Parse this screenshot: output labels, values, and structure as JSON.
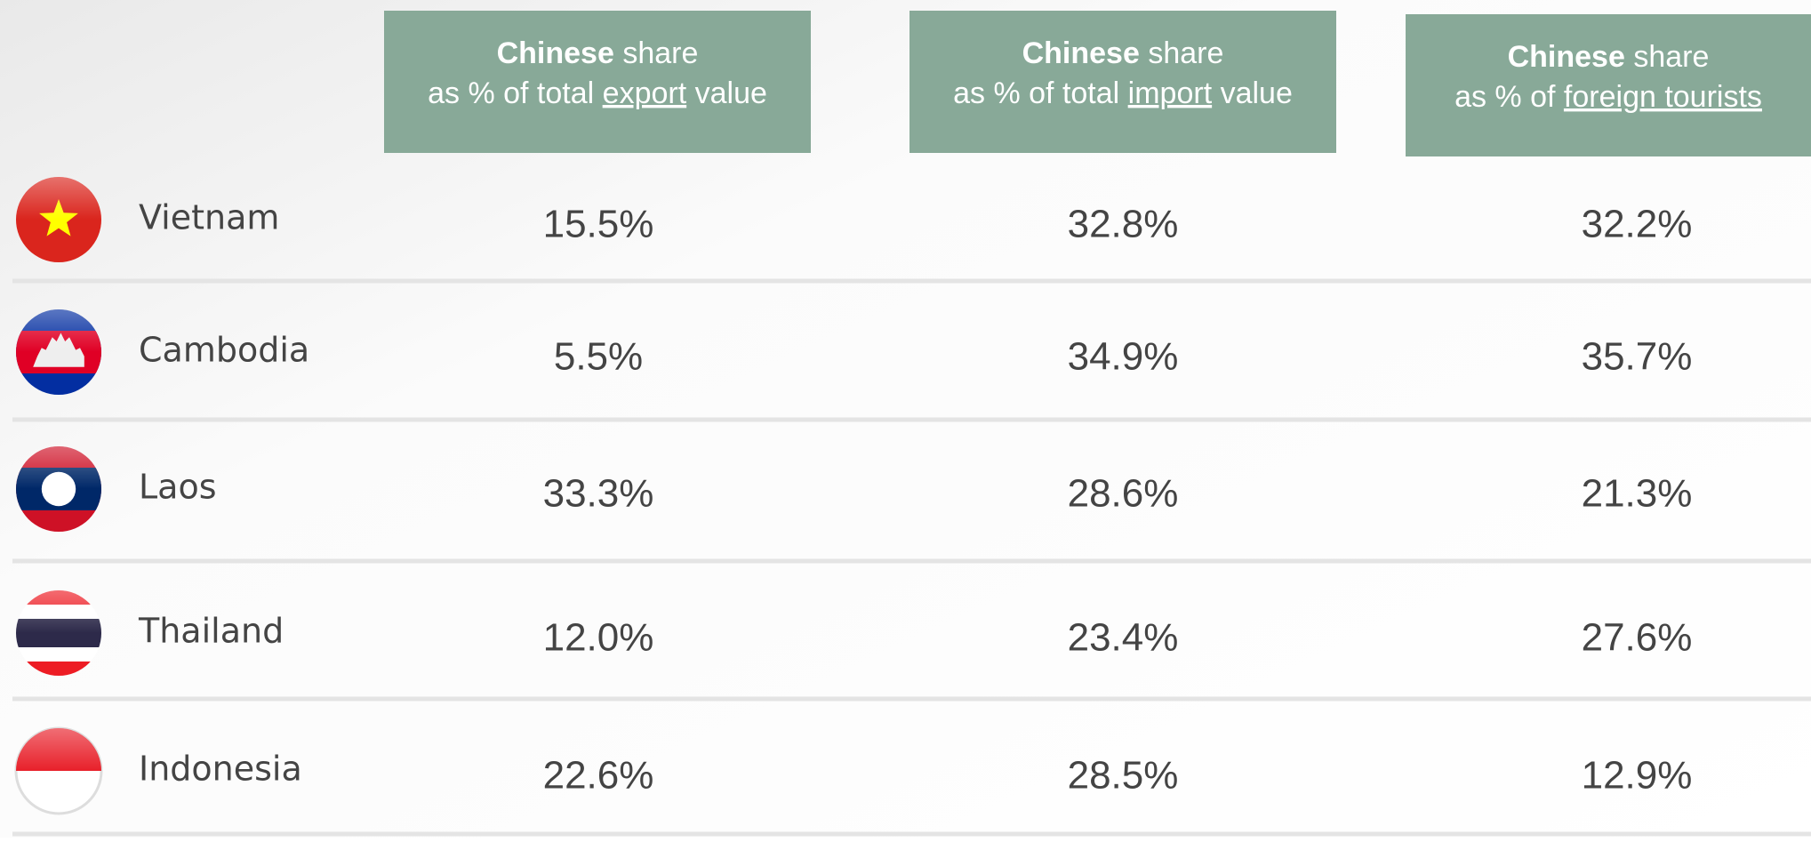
{
  "headers": [
    {
      "bold": "Chinese",
      "text": "share",
      "prefix": "as % of total",
      "underlined": "export",
      "suffix": "value"
    },
    {
      "bold": "Chinese",
      "text": "share",
      "prefix": "as % of total",
      "underlined": "import",
      "suffix": "value"
    },
    {
      "bold": "Chinese",
      "text": "share",
      "prefix": "as % of",
      "underlined": "foreign tourists"
    }
  ],
  "rows": [
    {
      "country": "Vietnam",
      "values": [
        "15.5%",
        "32.8%",
        "32.2%"
      ]
    },
    {
      "country": "Cambodia",
      "values": [
        "5.5%",
        "34.9%",
        "35.7%"
      ]
    },
    {
      "country": "Laos",
      "values": [
        "33.3%",
        "28.6%",
        "21.3%"
      ]
    },
    {
      "country": "Thailand",
      "values": [
        "12.0%",
        "23.4%",
        "27.6%"
      ]
    },
    {
      "country": "Indonesia",
      "values": [
        "22.6%",
        "28.5%",
        "12.9%"
      ]
    }
  ]
}
